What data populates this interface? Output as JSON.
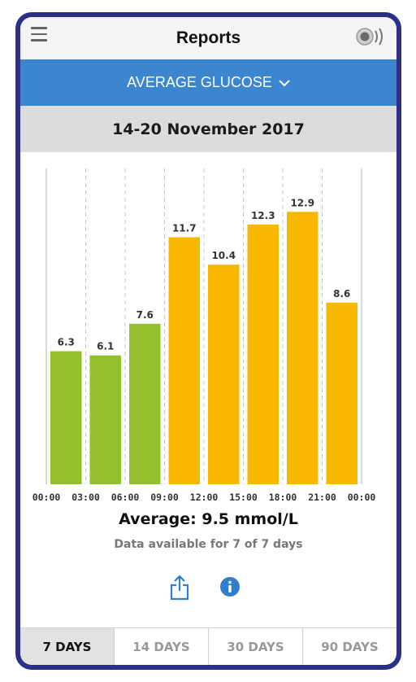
{
  "header": {
    "title": "Reports",
    "menu_icon": "menu-icon",
    "sensor_icon": "sensor-icon"
  },
  "report_selector": {
    "label": "AVERAGE GLUCOSE",
    "accent": "#3b86cf"
  },
  "date_range": "14-20 November 2017",
  "chart_data": {
    "type": "bar",
    "categories": [
      "00:00",
      "03:00",
      "06:00",
      "09:00",
      "12:00",
      "15:00",
      "18:00",
      "21:00"
    ],
    "x_ticks": [
      "00:00",
      "03:00",
      "06:00",
      "09:00",
      "12:00",
      "15:00",
      "18:00",
      "21:00",
      "00:00"
    ],
    "values": [
      6.3,
      6.1,
      7.6,
      11.7,
      10.4,
      12.3,
      12.9,
      8.6
    ],
    "value_labels": [
      "6.3",
      "6.1",
      "7.6",
      "11.7",
      "10.4",
      "12.3",
      "12.9",
      "8.6"
    ],
    "colors": [
      "#93bf2a",
      "#93bf2a",
      "#93bf2a",
      "#f9b800",
      "#f9b800",
      "#f9b800",
      "#f9b800",
      "#f9b800"
    ],
    "ylim": [
      0,
      16
    ],
    "grid": "vertical dashed"
  },
  "summary": {
    "average": "Average: 9.5 mmol/L",
    "availability": "Data available for 7 of 7 days"
  },
  "actions": {
    "share_icon": "share-icon",
    "info_icon": "info-icon"
  },
  "tabs": [
    {
      "label": "7 DAYS",
      "active": true
    },
    {
      "label": "14 DAYS",
      "active": false
    },
    {
      "label": "30 DAYS",
      "active": false
    },
    {
      "label": "90 DAYS",
      "active": false
    }
  ]
}
